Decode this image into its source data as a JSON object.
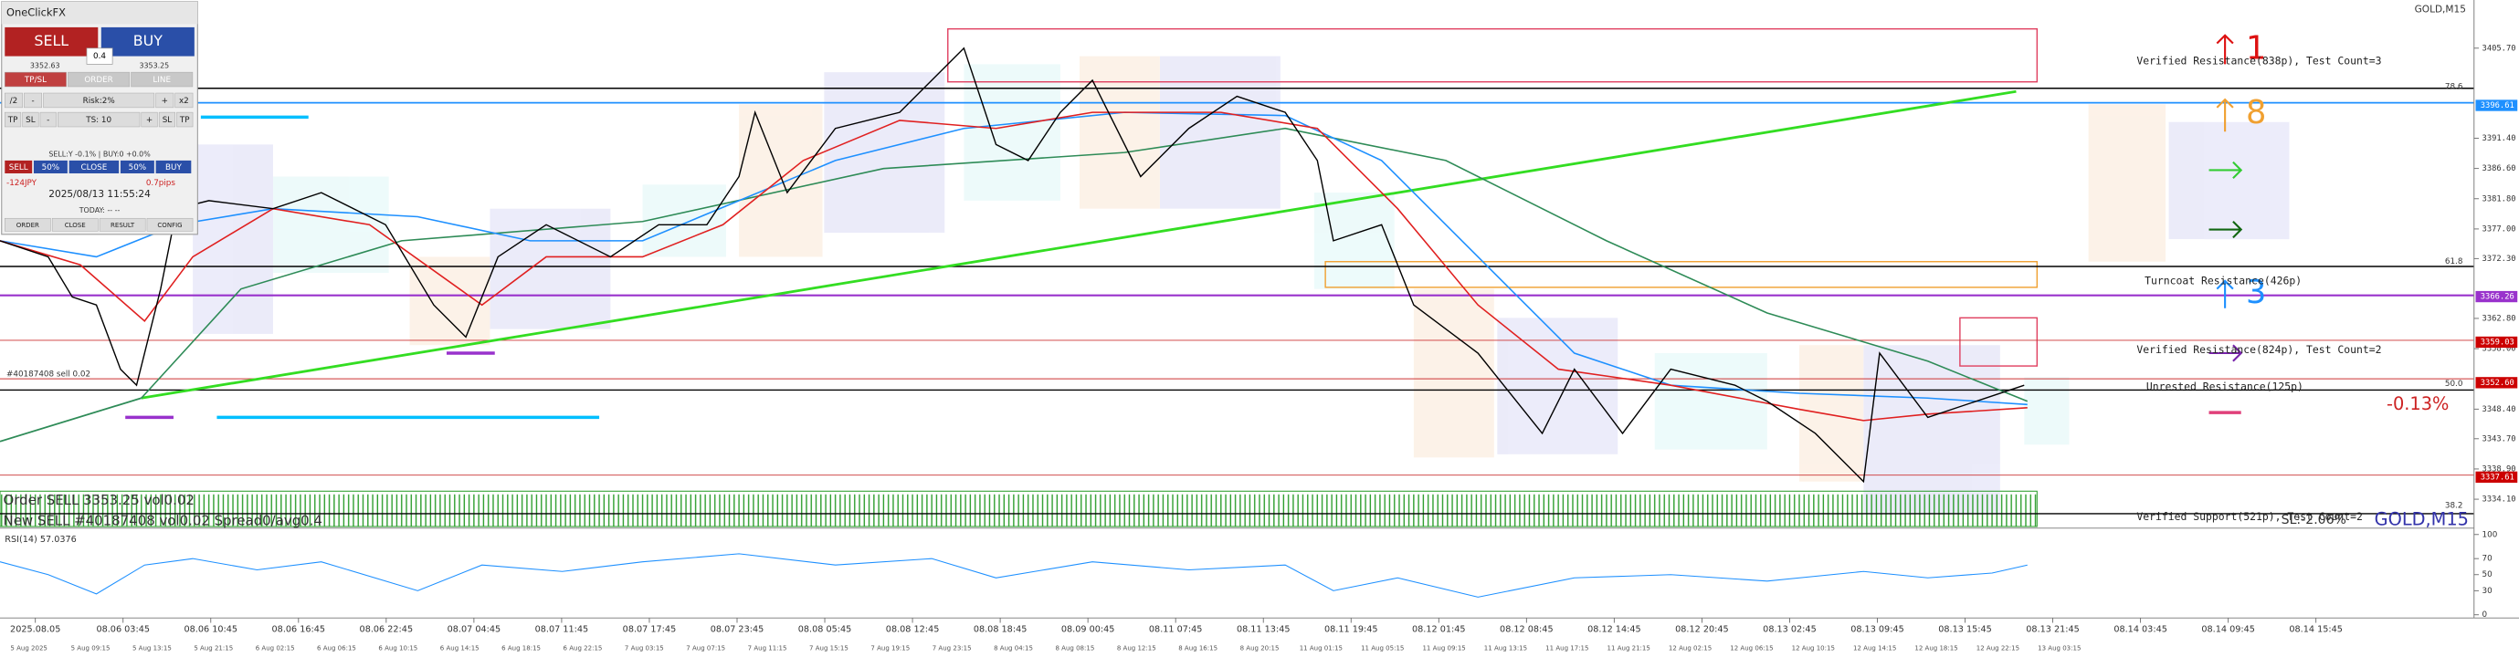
{
  "panel": {
    "title": "OneClickFX",
    "sell": "SELL",
    "buy": "BUY",
    "lot": "0.4",
    "sell_price": "3352.63",
    "buy_price": "3353.25",
    "tabs": [
      "TP/SL",
      "ORDER",
      "LINE"
    ],
    "risk_row": [
      "/2",
      "-",
      "Risk:2%",
      "+",
      "x2"
    ],
    "ts_row": [
      "TP",
      "SL",
      "-",
      "TS: 10",
      "+",
      "SL",
      "TP"
    ],
    "status": "SELL:Y -0.1% | BUY:0 +0.0%",
    "close_row": [
      "SELL",
      "50%",
      "CLOSE",
      "50%",
      "BUY"
    ],
    "pnl": "-124JPY",
    "pips": "0.7pips",
    "clock": "2025/08/13 11:55:24",
    "today": "TODAY: -- --",
    "footer": [
      "ORDER",
      "CLOSE",
      "RESULT",
      "CONFIG"
    ]
  },
  "chart": {
    "symbol": "GOLD,M15",
    "change": "-0.13%",
    "sl_text": "SL:-2.06%",
    "order_text": "Order SELL 3353.25 vol0.02",
    "new_text": "New SELL #40187408 vol0.02 Spread0/avg0.4",
    "ticket_text": "#40187408 sell 0.02",
    "zones": [
      "Verified Resistance(838p), Test Count=3",
      "Turncoat Resistance(426p)",
      "Verified Resistance(824p), Test Count=2",
      "Unrested Resistance(125p)",
      "Verified Support(521p), Test Count=2"
    ],
    "arrow_counts": [
      "1",
      "8",
      "3"
    ],
    "fib_levels": [
      "78.6",
      "61.8",
      "50.0",
      "38.2"
    ],
    "price_ticks": [
      {
        "value": 3405.7,
        "label": "3405.70"
      },
      {
        "value": 3391.4,
        "label": "3391.40"
      },
      {
        "value": 3386.6,
        "label": "3386.60"
      },
      {
        "value": 3381.8,
        "label": "3381.80"
      },
      {
        "value": 3377,
        "label": "3377.00"
      },
      {
        "value": 3372.3,
        "label": "3372.30"
      },
      {
        "value": 3362.8,
        "label": "3362.80"
      },
      {
        "value": 3358,
        "label": "3358.00"
      },
      {
        "value": 3348.4,
        "label": "3348.40"
      },
      {
        "value": 3343.7,
        "label": "3343.70"
      },
      {
        "value": 3338.9,
        "label": "3338.90"
      },
      {
        "value": 3334.1,
        "label": "3334.10"
      }
    ],
    "price_range": [
      3334.1,
      3405.7
    ],
    "marked_prices": [
      {
        "value": 3396.61,
        "label": "3396.61",
        "color": "#1e90ff"
      },
      {
        "value": 3366.26,
        "label": "3366.26",
        "color": "#9932cc"
      },
      {
        "value": 3359.03,
        "label": "3359.03",
        "color": "#cc0000"
      },
      {
        "value": 3352.6,
        "label": "3352.60",
        "color": "#cc0000"
      },
      {
        "value": 3337.61,
        "label": "3337.61",
        "color": "#cc0000"
      }
    ],
    "rsi_label": "RSI(14) 57.0376",
    "rsi_ticks": [
      100,
      70,
      50,
      30,
      0
    ],
    "rsi_range": [
      0,
      100
    ],
    "time_major": [
      "2025.08.05",
      "08.06 03:45",
      "08.06 10:45",
      "08.06 16:45",
      "08.06 22:45",
      "08.07 04:45",
      "08.07 11:45",
      "08.07 17:45",
      "08.07 23:45",
      "08.08 05:45",
      "08.08 12:45",
      "08.08 18:45",
      "08.09 00:45",
      "08.11 07:45",
      "08.11 13:45",
      "08.11 19:45",
      "08.12 01:45",
      "08.12 08:45",
      "08.12 14:45",
      "08.12 20:45",
      "08.13 02:45",
      "08.13 09:45",
      "08.13 15:45",
      "08.13 21:45",
      "08.14 03:45",
      "08.14 09:45",
      "08.14 15:45"
    ],
    "time_minor": [
      "5 Aug 2025",
      "5 Aug 09:15",
      "5 Aug 13:15",
      "5 Aug 21:15",
      "6 Aug 02:15",
      "6 Aug 06:15",
      "6 Aug 10:15",
      "6 Aug 14:15",
      "6 Aug 18:15",
      "6 Aug 22:15",
      "7 Aug 03:15",
      "7 Aug 07:15",
      "7 Aug 11:15",
      "7 Aug 15:15",
      "7 Aug 19:15",
      "7 Aug 23:15",
      "8 Aug 04:15",
      "8 Aug 08:15",
      "8 Aug 12:15",
      "8 Aug 16:15",
      "8 Aug 20:15",
      "11 Aug 01:15",
      "11 Aug 05:15",
      "11 Aug 09:15",
      "11 Aug 13:15",
      "11 Aug 17:15",
      "11 Aug 21:15",
      "12 Aug 02:15",
      "12 Aug 06:15",
      "12 Aug 10:15",
      "12 Aug 14:15",
      "12 Aug 18:15",
      "12 Aug 22:15",
      "13 Aug 03:15"
    ]
  }
}
